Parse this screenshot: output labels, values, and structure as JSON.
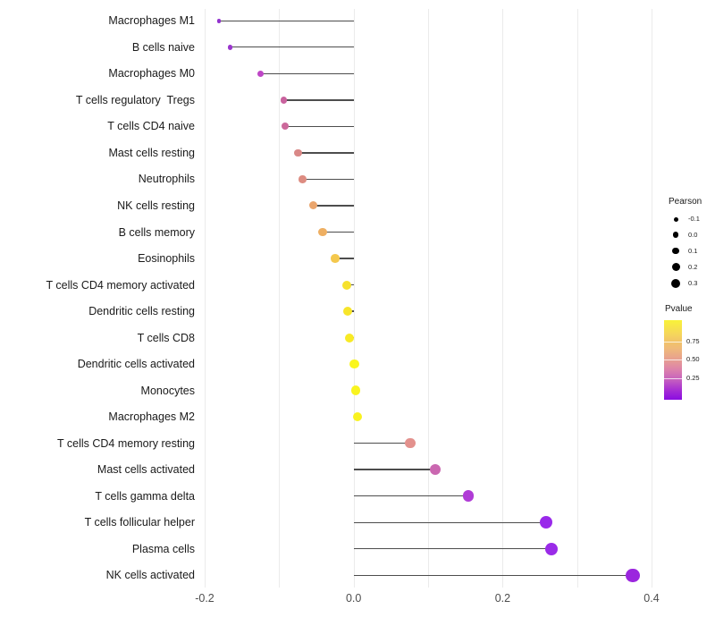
{
  "chart_data": {
    "type": "scatter",
    "subtype": "lollipop",
    "title": "",
    "xlabel": "",
    "ylabel": "",
    "xlim": [
      -0.25,
      0.45
    ],
    "x_ticks_labeled": [
      {
        "value": -0.2,
        "label": "-0.2"
      },
      {
        "value": 0.0,
        "label": "0.0"
      },
      {
        "value": 0.2,
        "label": "0.2"
      },
      {
        "value": 0.4,
        "label": "0.4"
      }
    ],
    "x_gridlines": [
      -0.2,
      -0.1,
      0.0,
      0.1,
      0.2,
      0.3,
      0.4
    ],
    "grid": "vertical-only",
    "stem_baseline_x": 0.0,
    "points": [
      {
        "label": "Macrophages M1",
        "pearson": -0.181,
        "pvalue_approx": 0.15,
        "color": "#9232CE",
        "d": 4.5
      },
      {
        "label": "B cells naive",
        "pearson": -0.166,
        "pvalue_approx": 0.17,
        "color": "#9A35CD",
        "d": 5.5
      },
      {
        "label": "Macrophages M0",
        "pearson": -0.125,
        "pvalue_approx": 0.32,
        "color": "#BE46C6",
        "d": 7
      },
      {
        "label": "T cells regulatory  Tregs",
        "pearson": -0.094,
        "pvalue_approx": 0.45,
        "color": "#C9629E",
        "d": 7.5
      },
      {
        "label": "T cells CD4 naive",
        "pearson": -0.092,
        "pvalue_approx": 0.46,
        "color": "#CC699B",
        "d": 8
      },
      {
        "label": "Mast cells resting",
        "pearson": -0.075,
        "pvalue_approx": 0.55,
        "color": "#D98887",
        "d": 8.5
      },
      {
        "label": "Neutrophils",
        "pearson": -0.069,
        "pvalue_approx": 0.56,
        "color": "#DD8C81",
        "d": 8.5
      },
      {
        "label": "NK cells resting",
        "pearson": -0.054,
        "pvalue_approx": 0.65,
        "color": "#EAA56D",
        "d": 9
      },
      {
        "label": "B cells memory",
        "pearson": -0.042,
        "pvalue_approx": 0.68,
        "color": "#EEAF62",
        "d": 9.5
      },
      {
        "label": "Eosinophils",
        "pearson": -0.025,
        "pvalue_approx": 0.76,
        "color": "#F4C84D",
        "d": 9.5
      },
      {
        "label": "T cells CD4 memory activated",
        "pearson": -0.009,
        "pvalue_approx": 0.87,
        "color": "#F6E12C",
        "d": 10
      },
      {
        "label": "Dendritic cells resting",
        "pearson": -0.008,
        "pvalue_approx": 0.88,
        "color": "#F7E52A",
        "d": 10
      },
      {
        "label": "T cells CD8",
        "pearson": -0.006,
        "pvalue_approx": 0.9,
        "color": "#F8EA25",
        "d": 10
      },
      {
        "label": "Dendritic cells activated",
        "pearson": 0.001,
        "pvalue_approx": 0.97,
        "color": "#FAF61E",
        "d": 10.5
      },
      {
        "label": "Monocytes",
        "pearson": 0.003,
        "pvalue_approx": 0.96,
        "color": "#F9F41F",
        "d": 10.5
      },
      {
        "label": "Macrophages M2",
        "pearson": 0.005,
        "pvalue_approx": 0.95,
        "color": "#F9F220",
        "d": 10.5
      },
      {
        "label": "T cells CD4 memory resting",
        "pearson": 0.076,
        "pvalue_approx": 0.57,
        "color": "#E3918D",
        "d": 11.5
      },
      {
        "label": "Mast cells activated",
        "pearson": 0.109,
        "pvalue_approx": 0.44,
        "color": "#CA67B0",
        "d": 12
      },
      {
        "label": "T cells gamma delta",
        "pearson": 0.154,
        "pvalue_approx": 0.3,
        "color": "#B03BD6",
        "d": 12.5
      },
      {
        "label": "T cells follicular helper",
        "pearson": 0.258,
        "pvalue_approx": 0.13,
        "color": "#9929EA",
        "d": 14
      },
      {
        "label": "Plasma cells",
        "pearson": 0.265,
        "pvalue_approx": 0.13,
        "color": "#9A2BE8",
        "d": 14
      },
      {
        "label": "NK cells activated",
        "pearson": 0.375,
        "pvalue_approx": 0.11,
        "color": "#9B26DE",
        "d": 15.5
      }
    ],
    "legend_position": "right"
  },
  "legends": {
    "pearson": {
      "title": "Pearson",
      "items": [
        {
          "label": "-0.1",
          "d": 5
        },
        {
          "label": "0.0",
          "d": 6.5
        },
        {
          "label": "0.1",
          "d": 7.5
        },
        {
          "label": "0.2",
          "d": 9
        },
        {
          "label": "0.3",
          "d": 10.5
        }
      ],
      "dot_color": "#000000"
    },
    "pvalue": {
      "title": "Pvalue",
      "tick_labels": [
        "0.75",
        "0.50",
        "0.25"
      ],
      "gradient_stops": [
        "#F9F239 0%",
        "#F5D55C 18%",
        "#F2C567 26%",
        "#EFB97A 36%",
        "#E79E92 50%",
        "#DC82AB 62%",
        "#C763BD 74%",
        "#A62ED3 88%",
        "#8A0CE1 100%"
      ]
    }
  },
  "colors": {
    "gridline": "#ebebeb",
    "stem": "#4d4d4d",
    "axis_text": "#4d4d4d",
    "label_text": "#1a1a1a",
    "background": "#ffffff"
  }
}
